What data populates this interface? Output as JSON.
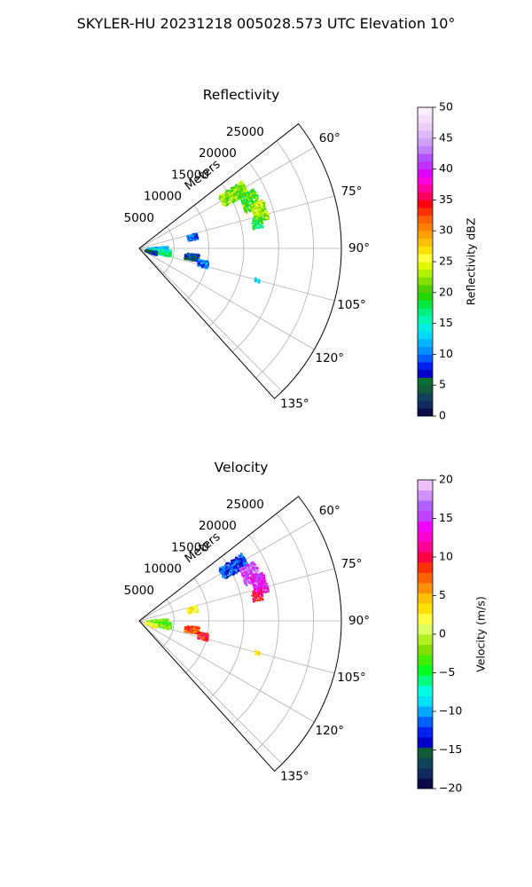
{
  "suptitle": "SKYLER-HU  20231218  005028.573 UTC Elevation 10°",
  "chart_data": [
    {
      "type": "polar-sector-scan",
      "title": "Reflectivity",
      "radial_axis_label": "Meters",
      "radial_ticks": [
        "5000",
        "10000",
        "15000",
        "20000",
        "25000"
      ],
      "angle_ticks": [
        "60°",
        "75°",
        "90°",
        "105°",
        "120°",
        "135°"
      ],
      "azimuth_range_deg": [
        52,
        138
      ],
      "range_max_m": 29000,
      "grid": true,
      "colorbar": {
        "label": "Reflectivity dBZ",
        "range": [
          0,
          50
        ],
        "ticks": [
          "0",
          "5",
          "10",
          "15",
          "20",
          "25",
          "30",
          "35",
          "40",
          "45",
          "50"
        ],
        "colormap": "pyart_HomeyerRainbow"
      },
      "echoes": [
        {
          "az_range": [
            56,
            63
          ],
          "r_range": [
            13500,
            17500
          ],
          "value": 22
        },
        {
          "az_range": [
            62,
            71
          ],
          "r_range": [
            16000,
            18500
          ],
          "value": 20
        },
        {
          "az_range": [
            68,
            77
          ],
          "r_range": [
            17000,
            19000
          ],
          "value": 23
        },
        {
          "az_range": [
            75,
            80
          ],
          "r_range": [
            16500,
            18000
          ],
          "value": 18
        },
        {
          "az_range": [
            74,
            80
          ],
          "r_range": [
            7000,
            8500
          ],
          "value": 9
        },
        {
          "az_range": [
            84,
            96
          ],
          "r_range": [
            1000,
            4000
          ],
          "value": 12
        },
        {
          "az_range": [
            92,
            104
          ],
          "r_range": [
            1500,
            4500
          ],
          "value": 16
        },
        {
          "az_range": [
            95,
            102
          ],
          "r_range": [
            6500,
            8500
          ],
          "value": 7
        },
        {
          "az_range": [
            98,
            110
          ],
          "r_range": [
            800,
            2500
          ],
          "value": 6
        },
        {
          "az_range": [
            100,
            106
          ],
          "r_range": [
            8500,
            10000
          ],
          "value": 10
        },
        {
          "az_range": [
            104,
            106
          ],
          "r_range": [
            17000,
            17800
          ],
          "value": 14
        }
      ]
    },
    {
      "type": "polar-sector-scan",
      "title": "Velocity",
      "radial_axis_label": "Meters",
      "radial_ticks": [
        "5000",
        "10000",
        "15000",
        "20000",
        "25000"
      ],
      "angle_ticks": [
        "60°",
        "75°",
        "90°",
        "105°",
        "120°",
        "135°"
      ],
      "azimuth_range_deg": [
        52,
        138
      ],
      "range_max_m": 29000,
      "grid": true,
      "colorbar": {
        "label": "Velocity (m/s)",
        "range": [
          -20,
          20
        ],
        "ticks": [
          "−20",
          "−15",
          "−10",
          "−5",
          "0",
          "5",
          "10",
          "15",
          "20"
        ],
        "colormap": "pyart_BuDRd18"
      },
      "echoes": [
        {
          "az_range": [
            56,
            63
          ],
          "r_range": [
            13500,
            17500
          ],
          "value": -12
        },
        {
          "az_range": [
            62,
            71
          ],
          "r_range": [
            16000,
            18500
          ],
          "value": 16
        },
        {
          "az_range": [
            68,
            77
          ],
          "r_range": [
            17000,
            19000
          ],
          "value": 14
        },
        {
          "az_range": [
            75,
            80
          ],
          "r_range": [
            16500,
            18000
          ],
          "value": 10
        },
        {
          "az_range": [
            74,
            80
          ],
          "r_range": [
            7000,
            8500
          ],
          "value": 2
        },
        {
          "az_range": [
            84,
            96
          ],
          "r_range": [
            1000,
            4000
          ],
          "value": -2
        },
        {
          "az_range": [
            92,
            104
          ],
          "r_range": [
            1500,
            4500
          ],
          "value": -3
        },
        {
          "az_range": [
            95,
            102
          ],
          "r_range": [
            6500,
            8500
          ],
          "value": 8
        },
        {
          "az_range": [
            98,
            110
          ],
          "r_range": [
            800,
            2500
          ],
          "value": 2
        },
        {
          "az_range": [
            100,
            106
          ],
          "r_range": [
            8500,
            10000
          ],
          "value": 9
        },
        {
          "az_range": [
            104,
            106
          ],
          "r_range": [
            17000,
            17800
          ],
          "value": 4
        }
      ]
    }
  ]
}
